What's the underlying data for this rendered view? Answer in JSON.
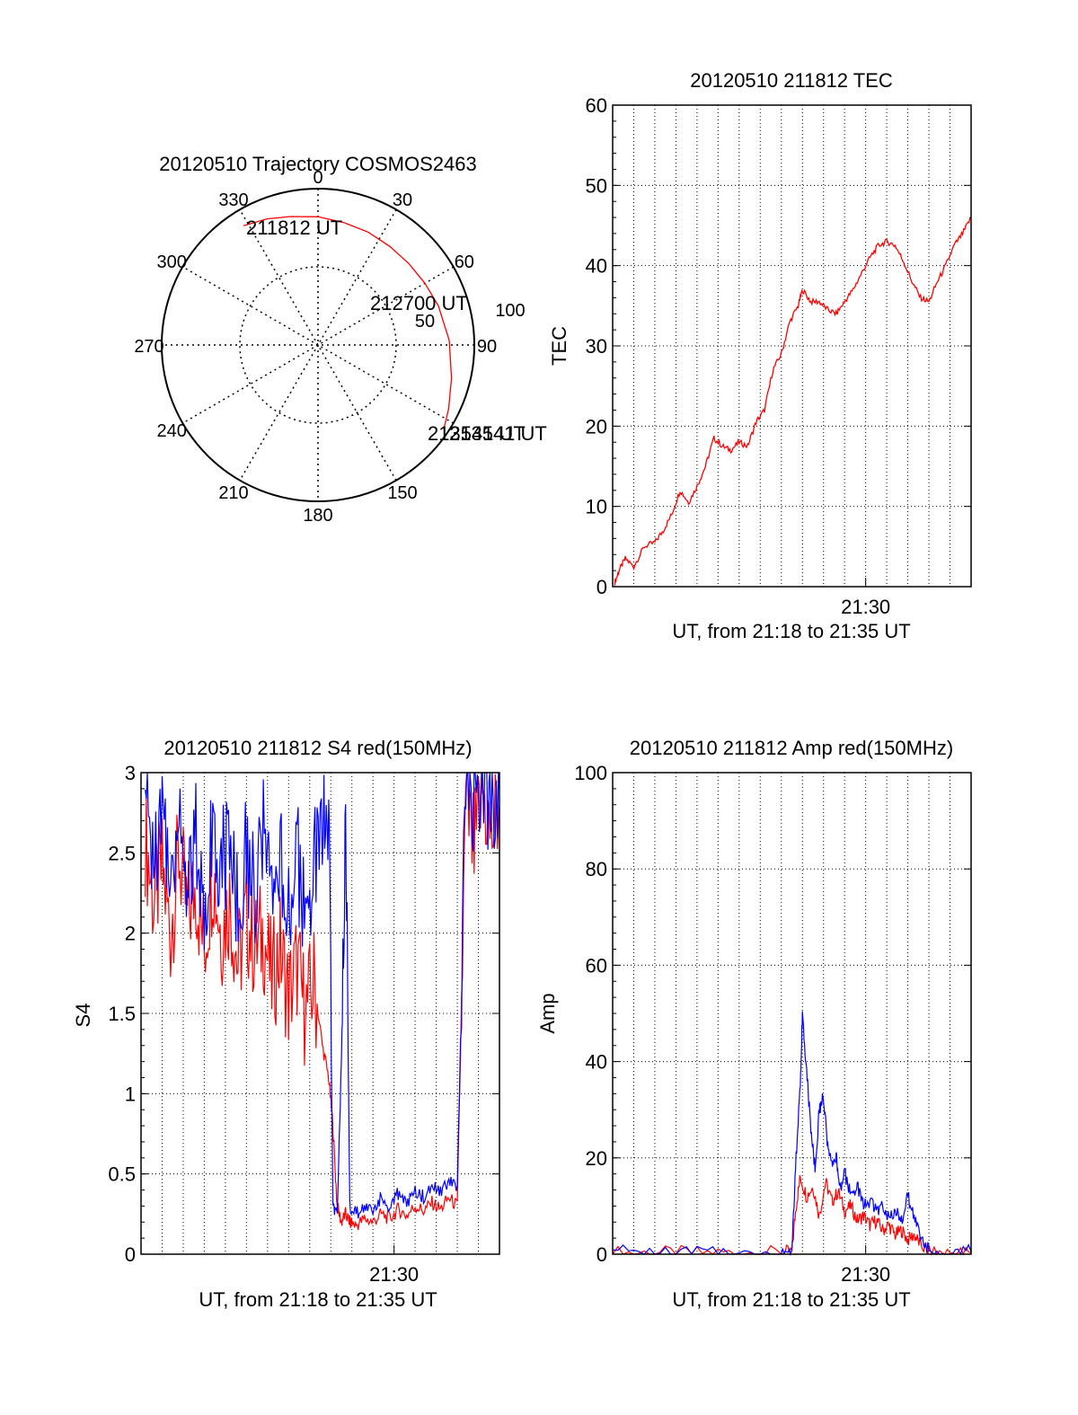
{
  "colors": {
    "red": "#ff0000",
    "blue": "#0000ff",
    "axis": "#000000"
  },
  "chart_data": [
    {
      "type": "polar",
      "title": "20120510 Trajectory COSMOS2463",
      "angle_labels": [
        "0",
        "30",
        "60",
        "90",
        "150",
        "180",
        "210",
        "240",
        "270",
        "300",
        "330"
      ],
      "angle_label_values": [
        0,
        30,
        60,
        90,
        150,
        180,
        210,
        240,
        270,
        300,
        330
      ],
      "radial_labels": [
        "50",
        "100"
      ],
      "radial_max": 100,
      "grid": true,
      "trajectory": {
        "azimuth": [
          328,
          338,
          348,
          0,
          12,
          24,
          36,
          48,
          60,
          72,
          88,
          104,
          116,
          124
        ],
        "zenith": [
          90,
          87,
          84,
          82,
          80,
          79,
          78,
          78,
          79,
          81,
          84,
          88,
          93,
          97
        ]
      },
      "annotations": [
        {
          "text": "211812 UT",
          "azimuth": 331,
          "zenith": 98
        },
        {
          "text": "212700 UT",
          "azimuth": 66,
          "zenith": 70
        },
        {
          "text": "213541 UT",
          "azimuth": 120,
          "zenith": 113
        },
        {
          "text": "213541 UT",
          "azimuth": 124,
          "zenith": 118
        }
      ]
    },
    {
      "type": "line",
      "title": "20120510 211812 TEC",
      "ylabel": "TEC",
      "xlabel": "UT, from 21:18 to 21:35 UT",
      "xlim": [
        0,
        17
      ],
      "ylim": [
        0,
        60
      ],
      "yticks": [
        "0",
        "10",
        "20",
        "30",
        "40",
        "50",
        "60"
      ],
      "xtick_label": "21:30",
      "xtick_value": 12,
      "grid": true,
      "series": [
        {
          "color": "red",
          "x": [
            0.1,
            0.3,
            0.6,
            1.0,
            1.5,
            2.0,
            2.4,
            2.8,
            3.2,
            3.6,
            4.0,
            4.4,
            4.8,
            5.2,
            5.6,
            6.0,
            6.4,
            6.8,
            7.2,
            7.6,
            8.0,
            8.4,
            8.8,
            9.0,
            9.4,
            9.8,
            10.2,
            10.6,
            11.0,
            11.4,
            11.8,
            12.2,
            12.6,
            13.0,
            13.4,
            13.8,
            14.2,
            14.6,
            15.0,
            15.4,
            15.8,
            16.2,
            16.6,
            17.0
          ],
          "y": [
            0.5,
            2,
            3.5,
            2.5,
            5,
            5.5,
            7,
            9,
            12,
            10.5,
            12.5,
            15,
            18.5,
            17.5,
            17,
            18,
            17.5,
            20.5,
            22,
            27,
            29,
            33,
            35,
            37,
            35.5,
            35.5,
            34.5,
            34,
            35.5,
            37,
            39,
            41,
            42.5,
            43,
            42.5,
            40.5,
            38,
            36,
            35.5,
            38,
            40,
            42.5,
            44,
            46
          ]
        }
      ]
    },
    {
      "type": "line",
      "title": "20120510 211812 S4 red(150MHz)",
      "ylabel": "S4",
      "xlabel": "UT, from 21:18 to 21:35 UT",
      "xlim": [
        0,
        17
      ],
      "ylim": [
        0,
        3
      ],
      "yticks": [
        "0",
        "0.5",
        "1",
        "1.5",
        "2",
        "2.5",
        "3"
      ],
      "xtick_label": "21:30",
      "xtick_value": 12,
      "grid": true,
      "series": [
        {
          "color": "red",
          "x": [
            0.2,
            0.6,
            1.0,
            1.4,
            1.8,
            2.2,
            2.6,
            3.0,
            3.4,
            3.8,
            4.2,
            4.6,
            5.0,
            5.4,
            5.8,
            6.2,
            6.6,
            7.0,
            7.4,
            7.8,
            8.2,
            8.6,
            8.9,
            9.1,
            9.3,
            9.5,
            9.7,
            9.9,
            10.2,
            10.6,
            11.0,
            11.4,
            11.8,
            12.2,
            12.6,
            13.0,
            13.4,
            13.8,
            14.2,
            14.6,
            15.0,
            15.4,
            15.8,
            16.2,
            16.6,
            17.0
          ],
          "y": [
            2.6,
            2.2,
            2.4,
            2.0,
            2.5,
            2.1,
            2.3,
            1.9,
            2.4,
            2.0,
            2.2,
            1.8,
            2.1,
            1.9,
            2.0,
            1.7,
            1.9,
            1.6,
            1.8,
            1.5,
            1.7,
            1.3,
            1.1,
            0.8,
            0.3,
            0.2,
            0.25,
            0.2,
            0.18,
            0.22,
            0.2,
            0.25,
            0.22,
            0.28,
            0.24,
            0.3,
            0.27,
            0.32,
            0.28,
            0.35,
            0.3,
            2.8,
            2.5,
            2.9,
            2.6,
            2.8
          ]
        },
        {
          "color": "blue",
          "x": [
            0.2,
            0.6,
            1.0,
            1.4,
            1.8,
            2.2,
            2.6,
            3.0,
            3.4,
            3.8,
            4.2,
            4.6,
            5.0,
            5.4,
            5.8,
            6.2,
            6.6,
            7.0,
            7.4,
            7.8,
            8.2,
            8.6,
            8.9,
            9.1,
            9.3,
            9.5,
            9.7,
            9.9,
            10.2,
            10.6,
            11.0,
            11.4,
            11.8,
            12.2,
            12.6,
            13.0,
            13.4,
            13.8,
            14.2,
            14.6,
            15.0,
            15.4,
            15.8,
            16.2,
            16.6,
            17.0
          ],
          "y": [
            2.8,
            2.5,
            2.7,
            2.4,
            2.8,
            2.3,
            2.6,
            2.2,
            2.7,
            2.4,
            2.6,
            2.2,
            2.5,
            2.3,
            2.6,
            2.1,
            2.4,
            2.2,
            2.5,
            2.0,
            2.4,
            2.6,
            2.8,
            0.3,
            0.25,
            1.2,
            2.8,
            0.3,
            0.25,
            0.3,
            0.28,
            0.35,
            0.3,
            0.38,
            0.32,
            0.4,
            0.36,
            0.42,
            0.38,
            0.45,
            0.4,
            2.9,
            2.7,
            3.0,
            2.8,
            2.9
          ]
        }
      ]
    },
    {
      "type": "line",
      "title": "20120510 211812 Amp red(150MHz)",
      "ylabel": "Amp",
      "xlabel": "UT, from 21:18 to 21:35 UT",
      "xlim": [
        0,
        17
      ],
      "ylim": [
        0,
        100
      ],
      "yticks": [
        "0",
        "20",
        "40",
        "60",
        "80",
        "100"
      ],
      "xtick_label": "21:30",
      "xtick_value": 12,
      "grid": true,
      "series": [
        {
          "color": "red",
          "x": [
            0,
            2,
            4,
            6,
            8,
            8.5,
            8.7,
            8.9,
            9.2,
            9.5,
            9.8,
            10.1,
            10.4,
            10.7,
            11.0,
            11.3,
            11.6,
            11.9,
            12.2,
            12.5,
            12.8,
            13.1,
            13.4,
            13.7,
            14.0,
            14.3,
            14.6,
            15.0,
            16.0,
            17.0
          ],
          "y": [
            0.3,
            0.3,
            0.3,
            0.3,
            0.3,
            0.5,
            10,
            16,
            12,
            14,
            8,
            15,
            11,
            13,
            9,
            10,
            7,
            8,
            6,
            7,
            5,
            6,
            4,
            5,
            3,
            4,
            2,
            0.4,
            0.3,
            0.3
          ]
        },
        {
          "color": "blue",
          "x": [
            0,
            2,
            4,
            6,
            8,
            8.5,
            8.7,
            8.9,
            9.0,
            9.2,
            9.4,
            9.6,
            9.8,
            10.0,
            10.2,
            10.4,
            10.6,
            10.8,
            11.0,
            11.3,
            11.6,
            11.9,
            12.2,
            12.5,
            12.8,
            13.1,
            13.4,
            13.7,
            14.0,
            14.3,
            14.6,
            15.0,
            16.0,
            17.0
          ],
          "y": [
            0.5,
            0.6,
            0.5,
            0.6,
            0.5,
            1,
            20,
            36,
            50,
            38,
            26,
            18,
            30,
            33,
            22,
            18,
            20,
            14,
            17,
            12,
            14,
            10,
            11,
            9,
            10,
            8,
            9,
            7,
            12,
            8,
            4,
            0.6,
            0.5,
            0.5
          ]
        }
      ]
    }
  ]
}
